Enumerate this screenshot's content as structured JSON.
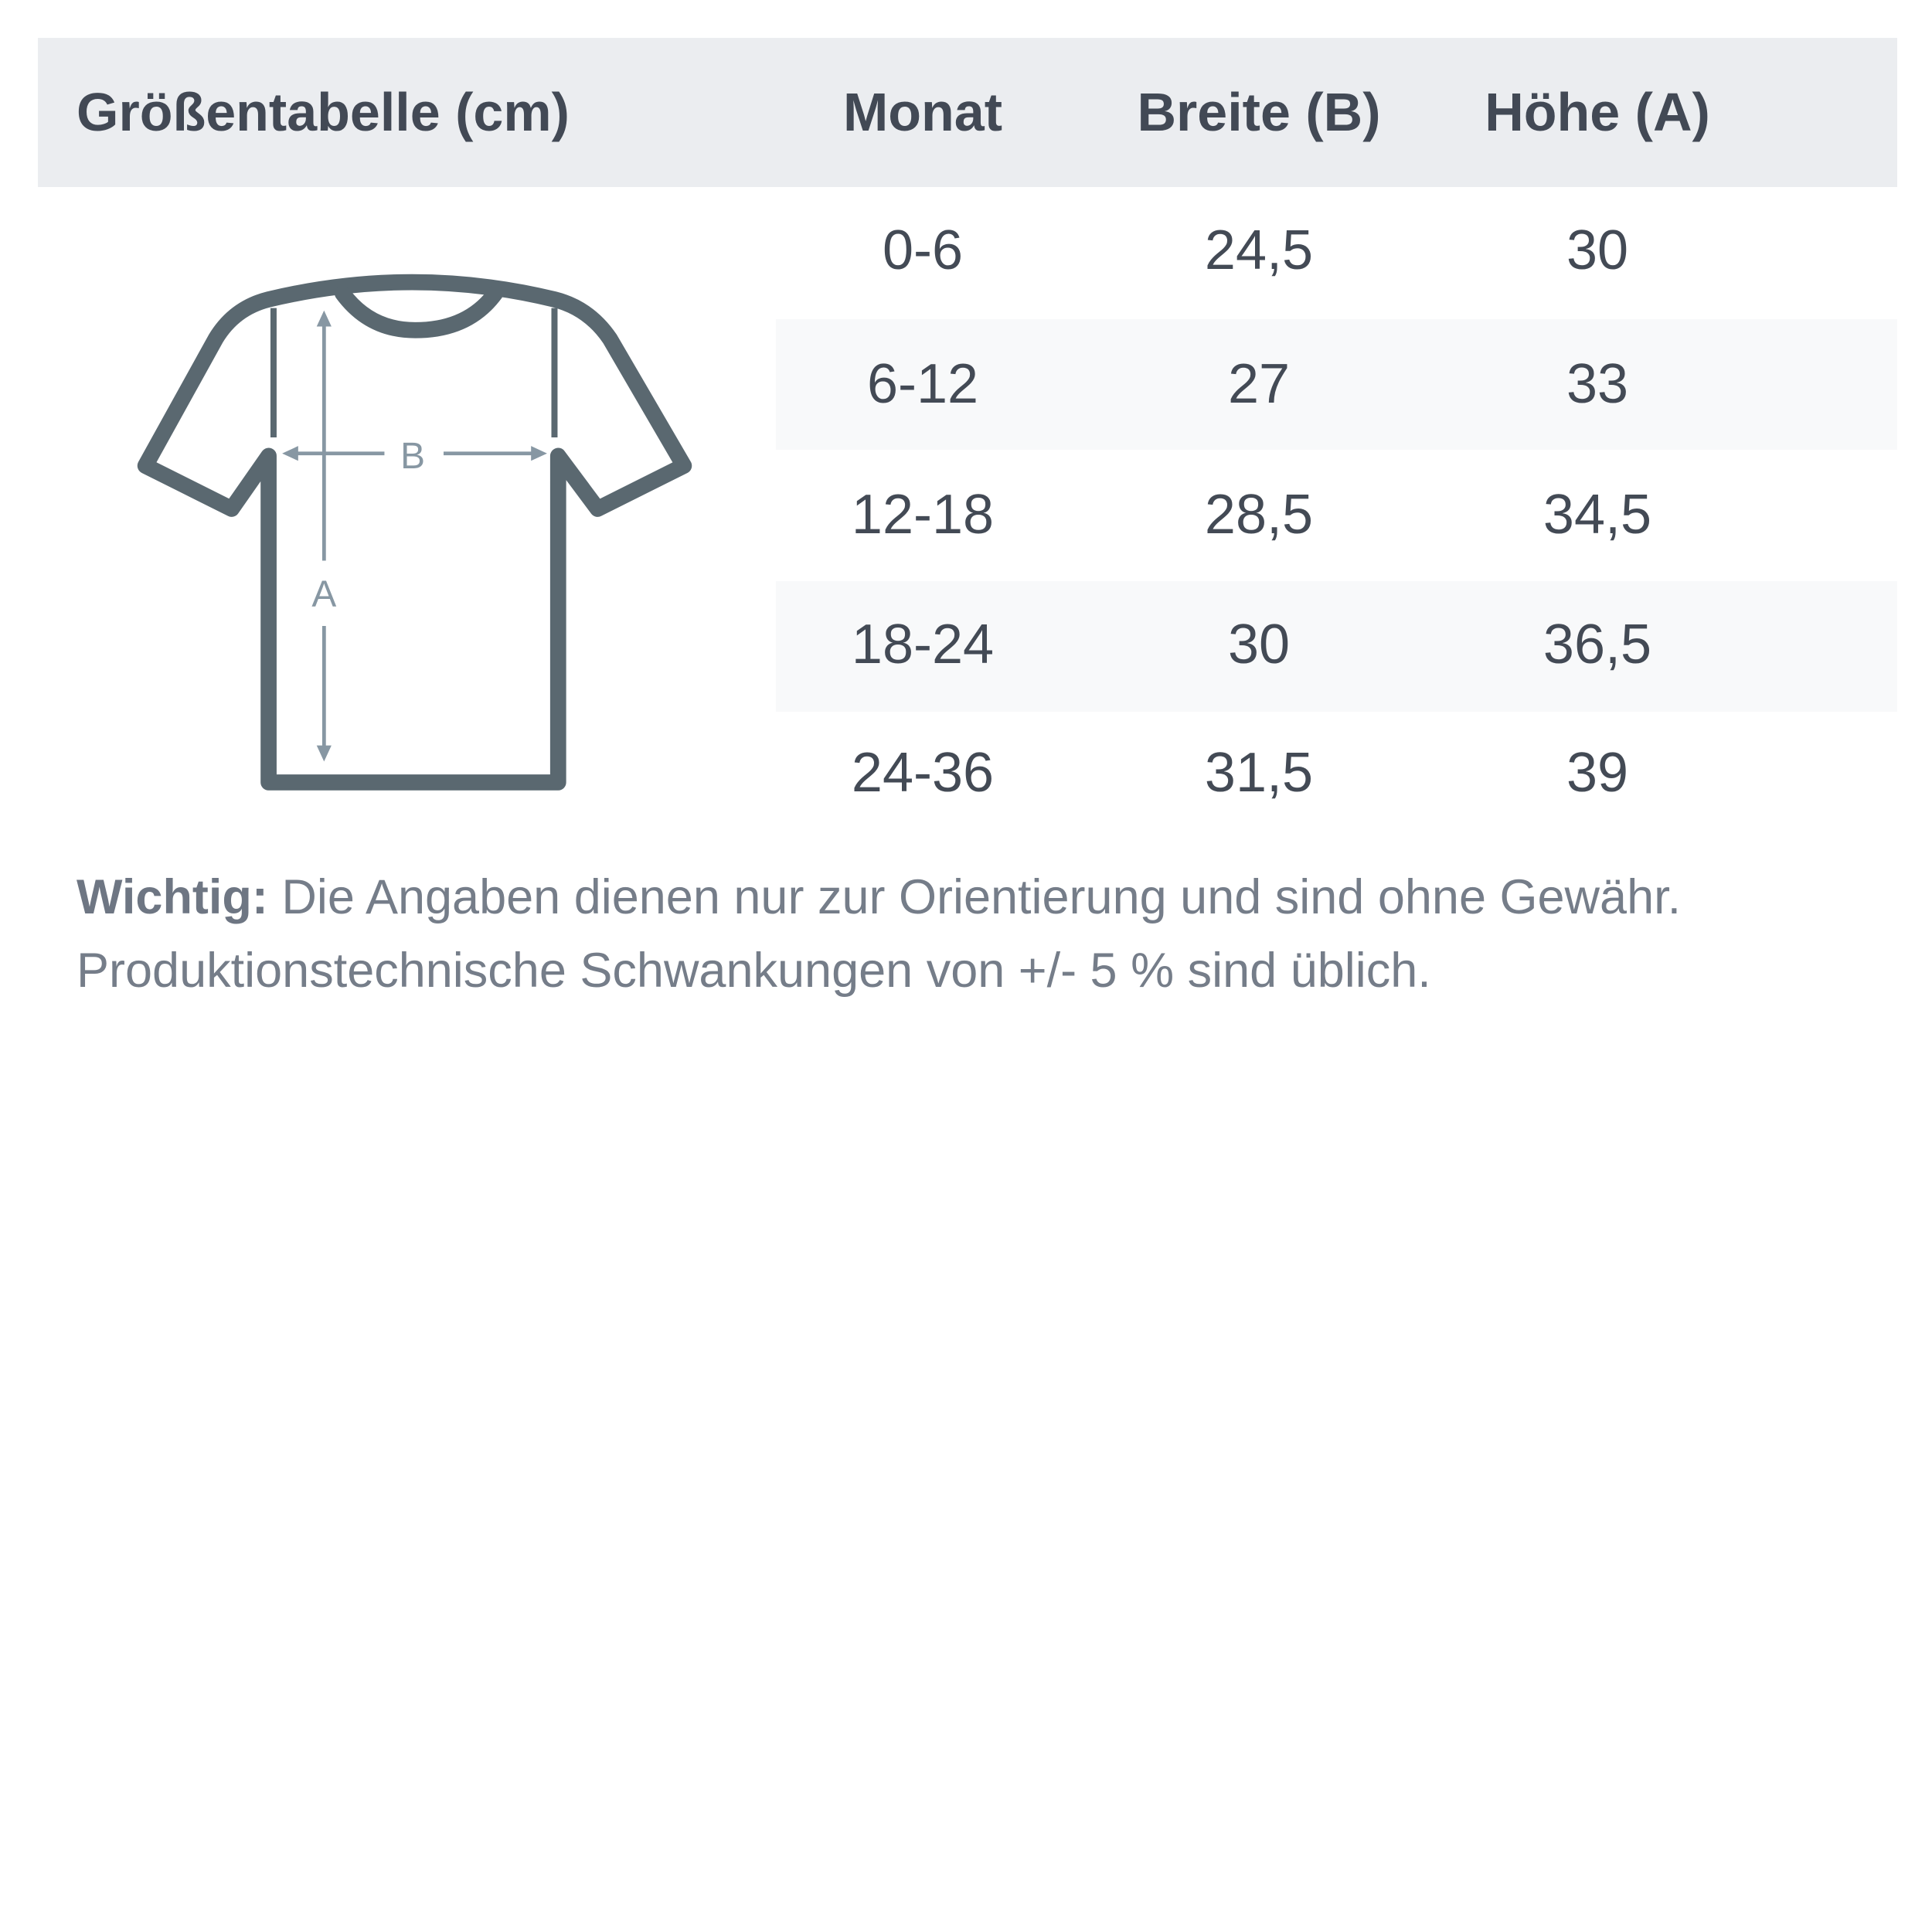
{
  "header": {
    "title": "Größentabelle (cm)",
    "columns": [
      "Monat",
      "Breite (B)",
      "Höhe (A)"
    ]
  },
  "diagram": {
    "icon": "t-shirt-measurement-icon",
    "width_label": "B",
    "height_label": "A"
  },
  "table": {
    "rows": [
      {
        "month": "0-6",
        "width": "24,5",
        "height": "30"
      },
      {
        "month": "6-12",
        "width": "27",
        "height": "33"
      },
      {
        "month": "12-18",
        "width": "28,5",
        "height": "34,5"
      },
      {
        "month": "18-24",
        "width": "30",
        "height": "36,5"
      },
      {
        "month": "24-36",
        "width": "31,5",
        "height": "39"
      }
    ]
  },
  "note": {
    "label": "Wichtig:",
    "line1": " Die Angaben dienen nur zur Orientierung und sind ohne Gewähr.",
    "line2": "Produktionstechnische Schwankungen von +/- 5 % sind üblich."
  },
  "colors": {
    "header_bg": "#ebedf0",
    "text": "#424955",
    "shirt": "#5a6870",
    "arrows": "#8797a3"
  }
}
